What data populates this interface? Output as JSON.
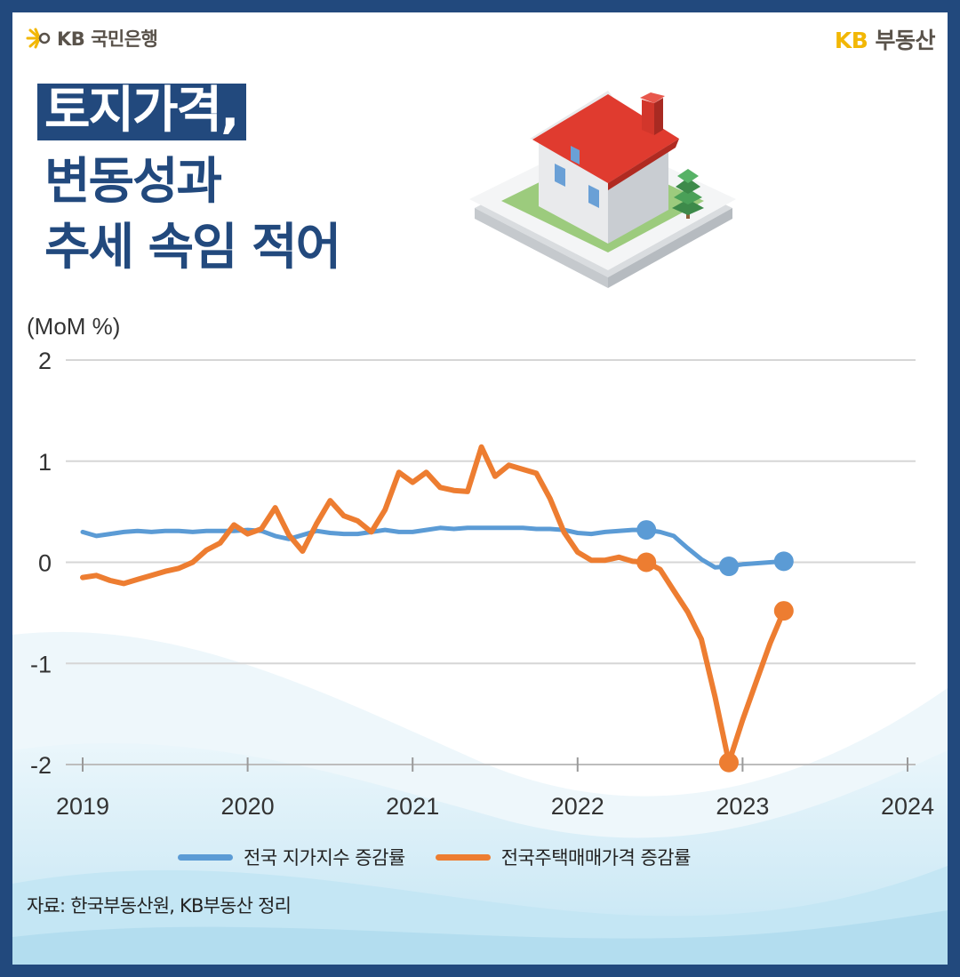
{
  "brand": {
    "left_logo_text": "KB 국민은행",
    "right_kb": "KB",
    "right_rest": " 부동산"
  },
  "headline": {
    "line1": "토지가격,",
    "line2": "변동성과",
    "line3": "추세 속임 적어"
  },
  "colors": {
    "frame": "#22497d",
    "land_series": "#5b9bd5",
    "housing_series": "#ed7d31",
    "kb_yellow": "#f2b705"
  },
  "source_note": "자료: 한국부동산원, KB부동산 정리",
  "chart_data": {
    "type": "line",
    "ylabel": "(MoM %)",
    "ylim": [
      -2,
      2
    ],
    "yticks": [
      "2",
      "1",
      "0",
      "-1",
      "-2"
    ],
    "xlim": [
      2019,
      2024
    ],
    "xticks": [
      "2019",
      "2020",
      "2021",
      "2022",
      "2023",
      "2024"
    ],
    "grid": true,
    "legend_position": "bottom",
    "series": [
      {
        "name": "전국 지가지수 증감률",
        "color": "#5b9bd5",
        "x": [
          2019.0,
          2019.083,
          2019.167,
          2019.25,
          2019.333,
          2019.417,
          2019.5,
          2019.583,
          2019.667,
          2019.75,
          2019.833,
          2019.917,
          2020.0,
          2020.083,
          2020.167,
          2020.25,
          2020.333,
          2020.417,
          2020.5,
          2020.583,
          2020.667,
          2020.75,
          2020.833,
          2020.917,
          2021.0,
          2021.083,
          2021.167,
          2021.25,
          2021.333,
          2021.417,
          2021.5,
          2021.583,
          2021.667,
          2021.75,
          2021.833,
          2021.917,
          2022.0,
          2022.083,
          2022.167,
          2022.25,
          2022.333,
          2022.417,
          2022.5,
          2022.583,
          2022.667,
          2022.75,
          2022.833,
          2022.917,
          2023.0,
          2023.083,
          2023.167,
          2023.25
        ],
        "values": [
          0.3,
          0.26,
          0.28,
          0.3,
          0.31,
          0.3,
          0.31,
          0.31,
          0.3,
          0.31,
          0.31,
          0.31,
          0.32,
          0.31,
          0.26,
          0.23,
          0.27,
          0.31,
          0.29,
          0.28,
          0.28,
          0.3,
          0.32,
          0.3,
          0.3,
          0.32,
          0.34,
          0.33,
          0.34,
          0.34,
          0.34,
          0.34,
          0.34,
          0.33,
          0.33,
          0.32,
          0.29,
          0.28,
          0.3,
          0.31,
          0.32,
          0.32,
          0.3,
          0.26,
          0.14,
          0.03,
          -0.05,
          -0.04,
          -0.02,
          -0.01,
          0.0,
          0.01
        ],
        "markers": [
          [
            2022.417,
            0.32
          ],
          [
            2022.917,
            -0.04
          ],
          [
            2023.25,
            0.01
          ]
        ]
      },
      {
        "name": "전국주택매매가격 증감률",
        "color": "#ed7d31",
        "x": [
          2019.0,
          2019.083,
          2019.167,
          2019.25,
          2019.333,
          2019.417,
          2019.5,
          2019.583,
          2019.667,
          2019.75,
          2019.833,
          2019.917,
          2020.0,
          2020.083,
          2020.167,
          2020.25,
          2020.333,
          2020.417,
          2020.5,
          2020.583,
          2020.667,
          2020.75,
          2020.833,
          2020.917,
          2021.0,
          2021.083,
          2021.167,
          2021.25,
          2021.333,
          2021.417,
          2021.5,
          2021.583,
          2021.667,
          2021.75,
          2021.833,
          2021.917,
          2022.0,
          2022.083,
          2022.167,
          2022.25,
          2022.333,
          2022.417,
          2022.5,
          2022.583,
          2022.667,
          2022.75,
          2022.833,
          2022.917,
          2023.0,
          2023.083,
          2023.167,
          2023.25
        ],
        "values": [
          -0.15,
          -0.13,
          -0.18,
          -0.21,
          -0.17,
          -0.13,
          -0.09,
          -0.06,
          0.0,
          0.12,
          0.19,
          0.37,
          0.28,
          0.33,
          0.54,
          0.27,
          0.11,
          0.38,
          0.61,
          0.46,
          0.41,
          0.3,
          0.52,
          0.89,
          0.79,
          0.89,
          0.74,
          0.71,
          0.7,
          1.14,
          0.85,
          0.96,
          0.92,
          0.88,
          0.63,
          0.3,
          0.1,
          0.02,
          0.02,
          0.05,
          0.01,
          0.0,
          -0.07,
          -0.28,
          -0.49,
          -0.76,
          -1.33,
          -1.98,
          -1.56,
          -1.18,
          -0.8,
          -0.48
        ],
        "markers": [
          [
            2022.417,
            0.0
          ],
          [
            2022.917,
            -1.98
          ],
          [
            2023.25,
            -0.48
          ]
        ]
      }
    ]
  }
}
